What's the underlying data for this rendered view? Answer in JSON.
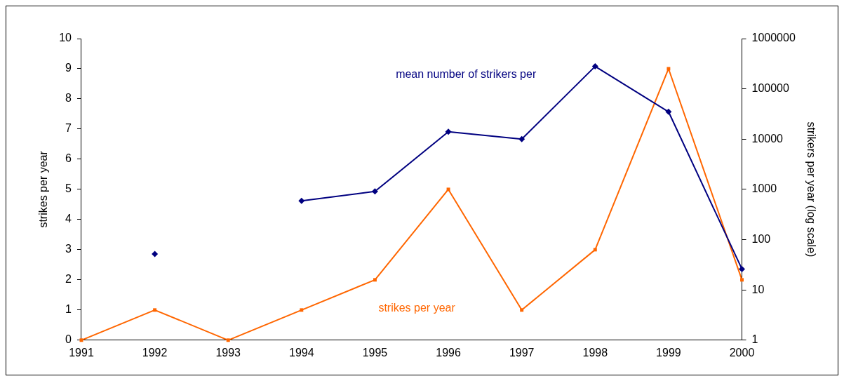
{
  "chart_data": {
    "type": "line",
    "categories": [
      "1991",
      "1992",
      "1993",
      "1994",
      "1995",
      "1996",
      "1997",
      "1998",
      "1999",
      "2000"
    ],
    "ylabel": "strikes per year",
    "y2label": "strikers per year (log scale)",
    "ylim": [
      0,
      10
    ],
    "yticks": [
      0,
      1,
      2,
      3,
      4,
      5,
      6,
      7,
      8,
      9,
      10
    ],
    "y2lim": [
      1,
      1000000
    ],
    "y2ticks": [
      1,
      10,
      100,
      1000,
      10000,
      100000,
      1000000
    ],
    "log": "y2",
    "series": [
      {
        "name": "strikes per year",
        "color": "#ff6600",
        "marker": "square",
        "values": [
          0,
          1,
          0,
          1,
          2,
          5,
          1,
          3,
          9,
          2
        ]
      },
      {
        "name": "mean number of strikers per",
        "color": "#000080",
        "marker": "diamond",
        "axis": "y2",
        "values": [
          null,
          52,
          null,
          590,
          910,
          14000,
          10000,
          280000,
          35000,
          26
        ]
      }
    ],
    "grid": false,
    "legend": false
  }
}
